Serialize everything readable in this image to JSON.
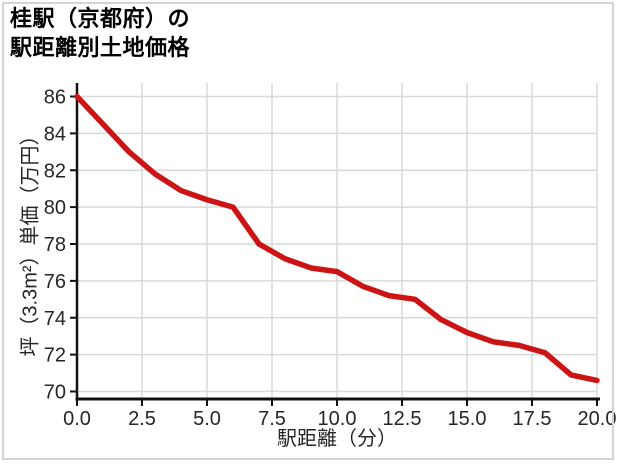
{
  "title": {
    "line1": "桂駅（京都府）の",
    "line2": "駅距離別土地価格"
  },
  "chart_data": {
    "type": "line",
    "title": "桂駅（京都府）の駅距離別土地価格",
    "xlabel": "駅距離（分）",
    "ylabel": "坪（3.3m²）単価（万円）",
    "x": [
      0,
      1,
      2,
      3,
      4,
      5,
      6,
      7,
      8,
      9,
      10,
      11,
      12,
      13,
      14,
      15,
      16,
      17,
      18,
      19,
      20
    ],
    "values": [
      86.0,
      84.5,
      83.0,
      81.8,
      80.9,
      80.4,
      80.0,
      78.0,
      77.2,
      76.7,
      76.5,
      75.7,
      75.2,
      75.0,
      73.9,
      73.2,
      72.7,
      72.5,
      72.1,
      70.9,
      70.6
    ],
    "xlim": [
      0,
      20
    ],
    "ylim": [
      70,
      86
    ],
    "xticks": [
      0,
      2.5,
      5,
      7.5,
      10,
      12.5,
      15,
      17.5,
      20
    ],
    "xtick_labels": [
      "0.0",
      "2.5",
      "5.0",
      "7.5",
      "10.0",
      "12.5",
      "15.0",
      "17.5",
      "20.0"
    ],
    "yticks": [
      70,
      72,
      74,
      76,
      78,
      80,
      82,
      84,
      86
    ],
    "ytick_labels": [
      "70",
      "72",
      "74",
      "76",
      "78",
      "80",
      "82",
      "84",
      "86"
    ],
    "grid": true,
    "legend": "none",
    "line_color": "#cc1414"
  },
  "colors": {
    "line": "#cc1414",
    "gridline": "#d9d9d9",
    "axis": "#111111",
    "tick_text": "#262626",
    "title_text": "#000000",
    "frame_border": "#d4d4d4",
    "background": "#ffffff"
  }
}
